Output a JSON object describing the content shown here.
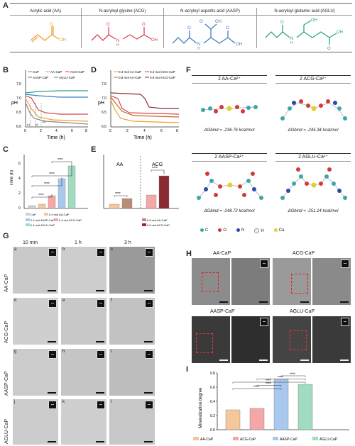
{
  "panels": {
    "a": "A",
    "b": "B",
    "c": "C",
    "d": "D",
    "e": "E",
    "f": "F",
    "g": "G",
    "h": "H",
    "i": "I"
  },
  "panelA": {
    "columns": [
      {
        "name": "Acrylic acid (AA)",
        "color": "#f0a030"
      },
      {
        "name": "N-acryloyl glycine (ACG)",
        "color": "#d8434a"
      },
      {
        "name": "N-acryloyl aspartic acid (AASP)",
        "color": "#3f7fc1"
      },
      {
        "name": "N-acryloyl glutamic acid (AGLU)",
        "color": "#2fa37a"
      }
    ],
    "atoms": {
      "O": "O",
      "OH": "OH",
      "N": "N",
      "H": "H"
    }
  },
  "panelB": {
    "ylabel": "pH",
    "xlabel": "Time (h)",
    "yticks": [
      "7.5",
      "7.0",
      "6.5",
      "6.0"
    ],
    "xticks": [
      "0",
      "2",
      "4",
      "6",
      "8"
    ],
    "legend": [
      "CaP",
      "AA-CaP",
      "ACG-CaP",
      "AASP-CaP",
      "AGLU-CaP"
    ],
    "markers": [
      "s1",
      "s2",
      "s3"
    ]
  },
  "panelC": {
    "ylabel": "Time (h)",
    "yticks": [
      "6",
      "4",
      "2",
      "0"
    ],
    "sig": "****",
    "legend": [
      "CaP",
      "0.4 mol AA-CaP",
      "0.4 mol AASP-CaP",
      "0.4 mol ACG-CaP",
      "0.4 mol AGLU-CaP"
    ]
  },
  "panelD": {
    "ylabel": "pH",
    "xlabel": "Time (h)",
    "yticks": [
      "7.5",
      "7.0",
      "6.5",
      "6.0"
    ],
    "xticks": [
      "0",
      "2",
      "4",
      "6",
      "8"
    ],
    "legend": [
      "0.4 mol AA-CaP",
      "0.4 mol ACG-CaP",
      "0.8 mol AA-CaP",
      "0.8 mol ACG-CaP"
    ]
  },
  "panelE": {
    "groups": [
      "AA",
      "ACG"
    ],
    "sig": "****",
    "legend": [
      "0.8 mol AA-CaP",
      "0.8 mol ACG-CaP"
    ]
  },
  "panelF": {
    "cards": [
      {
        "title": "2 AA-Ca²⁺",
        "energy": "ΔGbind = -236.76 kcal/mol"
      },
      {
        "title": "2 ACG-Ca²⁺",
        "energy": "ΔGbind = -245.34 kcal/mol"
      },
      {
        "title": "2 AASP-Ca²⁺",
        "energy": "ΔGbind = -248.72 kcal/mol"
      },
      {
        "title": "2 AGLU-Ca²⁺",
        "energy": "ΔGbind = -251.14 kcal/mol"
      }
    ],
    "legend": [
      {
        "label": "C",
        "color": "#3aa8a8"
      },
      {
        "label": "O",
        "color": "#d23a3a"
      },
      {
        "label": "N",
        "color": "#2a4aa8"
      },
      {
        "label": "H",
        "color": "#eeeeee"
      },
      {
        "label": "Ca",
        "color": "#e0d030"
      }
    ]
  },
  "panelG": {
    "columns": [
      "10 min",
      "1 h",
      "3 h"
    ],
    "rows": [
      "AA-CaP",
      "ACG-CaP",
      "AASP-CaP",
      "AGLU-CaP"
    ],
    "tiles": [
      "a",
      "b",
      "c",
      "d",
      "e",
      "f",
      "g",
      "h",
      "i",
      "j",
      "k",
      "l"
    ]
  },
  "panelH": {
    "labels": [
      "AA-CaP",
      "ACG-CaP",
      "AASP-CaP",
      "AGLU-CaP"
    ]
  },
  "chart_data": {
    "type": "bar",
    "ylabel": "Mineralization degree",
    "yticks": [
      "0.8",
      "0.6",
      "0.4",
      "0.2",
      "0.0"
    ],
    "ylim": [
      0,
      0.8
    ],
    "categories": [
      "AA-CaP",
      "ACG-CaP",
      "AASP-CaP",
      "AGLU-CaP"
    ],
    "values": [
      0.28,
      0.3,
      0.71,
      0.64
    ],
    "colors": [
      "#f5c79a",
      "#f4a7a7",
      "#a9c8ee",
      "#9fdcc0"
    ],
    "sig": "****"
  }
}
